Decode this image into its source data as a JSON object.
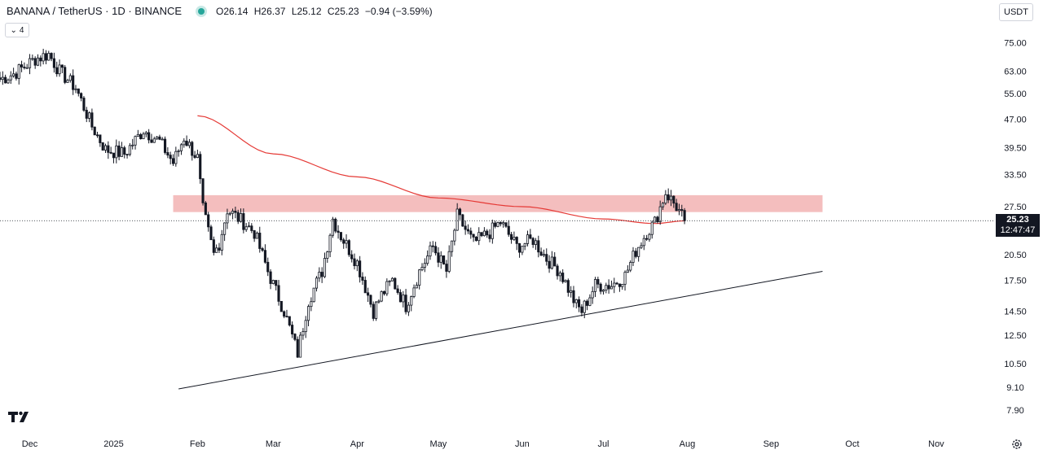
{
  "header": {
    "symbol": "BANANA / TetherUS · 1D · BINANCE",
    "open": "O26.14",
    "high": "H26.37",
    "low": "L25.12",
    "close": "C25.23",
    "change": "−0.94 (−3.59%)"
  },
  "indicator_toggle": {
    "count": "4"
  },
  "currency_button": "USDT",
  "price_tag": {
    "price": "25.23",
    "countdown": "12:47:47"
  },
  "colors": {
    "up": "#131722",
    "down": "#131722",
    "zone": "#f0a8a8",
    "ma": "#e53935",
    "text": "#131722"
  },
  "chart_data": {
    "type": "candlestick",
    "scale": "log",
    "ylim": [
      7.3,
      84
    ],
    "y_ticks": [
      7.9,
      9.1,
      10.5,
      12.5,
      14.5,
      17.5,
      20.5,
      23.5,
      27.5,
      33.5,
      39.5,
      47.0,
      55.0,
      63.0,
      75.0
    ],
    "y_tick_labels": [
      "7.90",
      "9.10",
      "10.50",
      "12.50",
      "14.50",
      "17.50",
      "20.50",
      "",
      "27.50",
      "33.50",
      "39.50",
      "47.00",
      "55.00",
      "63.00",
      "75.00"
    ],
    "x_ticks": [
      {
        "label": "Dec",
        "date": "2024-12-01"
      },
      {
        "label": "2025",
        "date": "2025-01-01"
      },
      {
        "label": "Feb",
        "date": "2025-02-01"
      },
      {
        "label": "Mar",
        "date": "2025-03-01"
      },
      {
        "label": "Apr",
        "date": "2025-04-01"
      },
      {
        "label": "May",
        "date": "2025-05-01"
      },
      {
        "label": "Jun",
        "date": "2025-06-01"
      },
      {
        "label": "Jul",
        "date": "2025-07-01"
      },
      {
        "label": "Aug",
        "date": "2025-08-01"
      },
      {
        "label": "Sep",
        "date": "2025-09-01"
      },
      {
        "label": "Oct",
        "date": "2025-10-01"
      },
      {
        "label": "Nov",
        "date": "2025-11-01"
      }
    ],
    "xlim": [
      "2024-11-20",
      "2025-11-20"
    ],
    "last_price": 25.23,
    "close_path": [
      [
        "2024-11-20",
        60
      ],
      [
        "2024-11-25",
        62
      ],
      [
        "2024-12-03",
        68
      ],
      [
        "2024-12-08",
        70
      ],
      [
        "2024-12-12",
        63
      ],
      [
        "2024-12-18",
        57
      ],
      [
        "2024-12-24",
        45
      ],
      [
        "2024-12-29",
        39
      ],
      [
        "2025-01-05",
        38
      ],
      [
        "2025-01-12",
        44
      ],
      [
        "2025-01-18",
        41
      ],
      [
        "2025-01-23",
        36
      ],
      [
        "2025-01-27",
        42
      ],
      [
        "2025-02-01",
        37
      ],
      [
        "2025-02-03",
        27
      ],
      [
        "2025-02-07",
        20.5
      ],
      [
        "2025-02-09",
        22
      ],
      [
        "2025-02-12",
        27
      ],
      [
        "2025-02-18",
        25
      ],
      [
        "2025-02-22",
        23.5
      ],
      [
        "2025-02-27",
        18.5
      ],
      [
        "2025-03-05",
        14.5
      ],
      [
        "2025-03-10",
        11.2
      ],
      [
        "2025-03-14",
        15.5
      ],
      [
        "2025-03-19",
        18.5
      ],
      [
        "2025-03-23",
        25.5
      ],
      [
        "2025-03-26",
        23
      ],
      [
        "2025-04-01",
        19.5
      ],
      [
        "2025-04-07",
        14.5
      ],
      [
        "2025-04-10",
        16
      ],
      [
        "2025-04-14",
        17.5
      ],
      [
        "2025-04-19",
        15
      ],
      [
        "2025-04-24",
        18.5
      ],
      [
        "2025-04-29",
        21.5
      ],
      [
        "2025-05-04",
        18.5
      ],
      [
        "2025-05-08",
        26
      ],
      [
        "2025-05-14",
        22
      ],
      [
        "2025-05-20",
        23.5
      ],
      [
        "2025-05-24",
        25
      ],
      [
        "2025-05-30",
        21.5
      ],
      [
        "2025-06-05",
        22.5
      ],
      [
        "2025-06-10",
        20
      ],
      [
        "2025-06-15",
        18.5
      ],
      [
        "2025-06-21",
        15
      ],
      [
        "2025-06-23",
        14.5
      ],
      [
        "2025-06-28",
        17
      ],
      [
        "2025-07-04",
        17
      ],
      [
        "2025-07-09",
        18
      ],
      [
        "2025-07-13",
        21
      ],
      [
        "2025-07-17",
        23.5
      ],
      [
        "2025-07-20",
        25
      ],
      [
        "2025-07-24",
        30
      ],
      [
        "2025-07-28",
        27.5
      ],
      [
        "2025-07-31",
        25.23
      ]
    ],
    "moving_average": [
      [
        "2025-02-01",
        48
      ],
      [
        "2025-03-01",
        38
      ],
      [
        "2025-04-01",
        33
      ],
      [
        "2025-05-01",
        29
      ],
      [
        "2025-06-01",
        27.5
      ],
      [
        "2025-07-01",
        25.5
      ],
      [
        "2025-07-20",
        24.8
      ],
      [
        "2025-07-31",
        25.2
      ]
    ],
    "resistance_zone": {
      "low": 26.6,
      "high": 29.5,
      "from": "2025-01-23",
      "to": "2025-09-20"
    },
    "support_line": [
      [
        "2025-01-25",
        9.0
      ],
      [
        "2025-09-20",
        18.5
      ]
    ]
  }
}
